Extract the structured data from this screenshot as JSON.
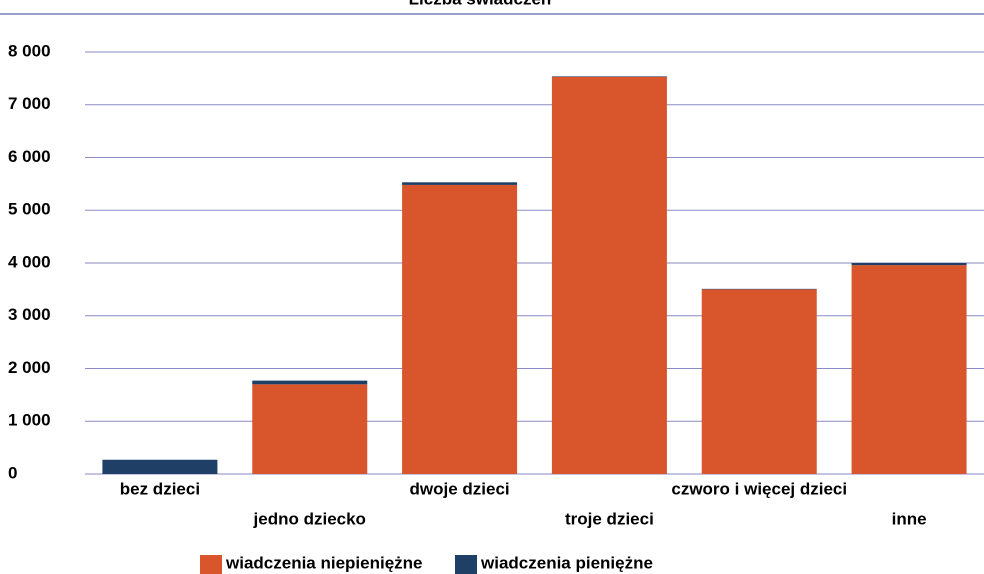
{
  "chart_data": {
    "type": "stacked-bar",
    "title": "Liczba świadczeń",
    "categories": [
      "bez dzieci",
      "jedno dziecko",
      "dwoje dzieci",
      "troje dzieci",
      "czworo i więcej dzieci",
      "inne"
    ],
    "series": [
      {
        "name": "wiadczenia niepieniężne",
        "color": "#d9552b",
        "values": [
          0,
          1700,
          5480,
          7530,
          3500,
          3960
        ]
      },
      {
        "name": "wiadczenia pieniężne",
        "color": "#1f3f66",
        "values": [
          270,
          70,
          50,
          10,
          10,
          40
        ]
      }
    ],
    "ylim": [
      0,
      8000
    ],
    "yticks": [
      0,
      {
        "value": 1000,
        "label": "1 000"
      },
      {
        "value": 2000,
        "label": "2 000"
      },
      {
        "value": 3000,
        "label": "3 000"
      },
      {
        "value": 4000,
        "label": "4 000"
      },
      {
        "value": 5000,
        "label": "5 000"
      },
      {
        "value": 6000,
        "label": "6 000"
      },
      {
        "value": 7000,
        "label": "7 000"
      },
      {
        "value": 8000,
        "label": "8 000"
      }
    ],
    "grid": true
  }
}
